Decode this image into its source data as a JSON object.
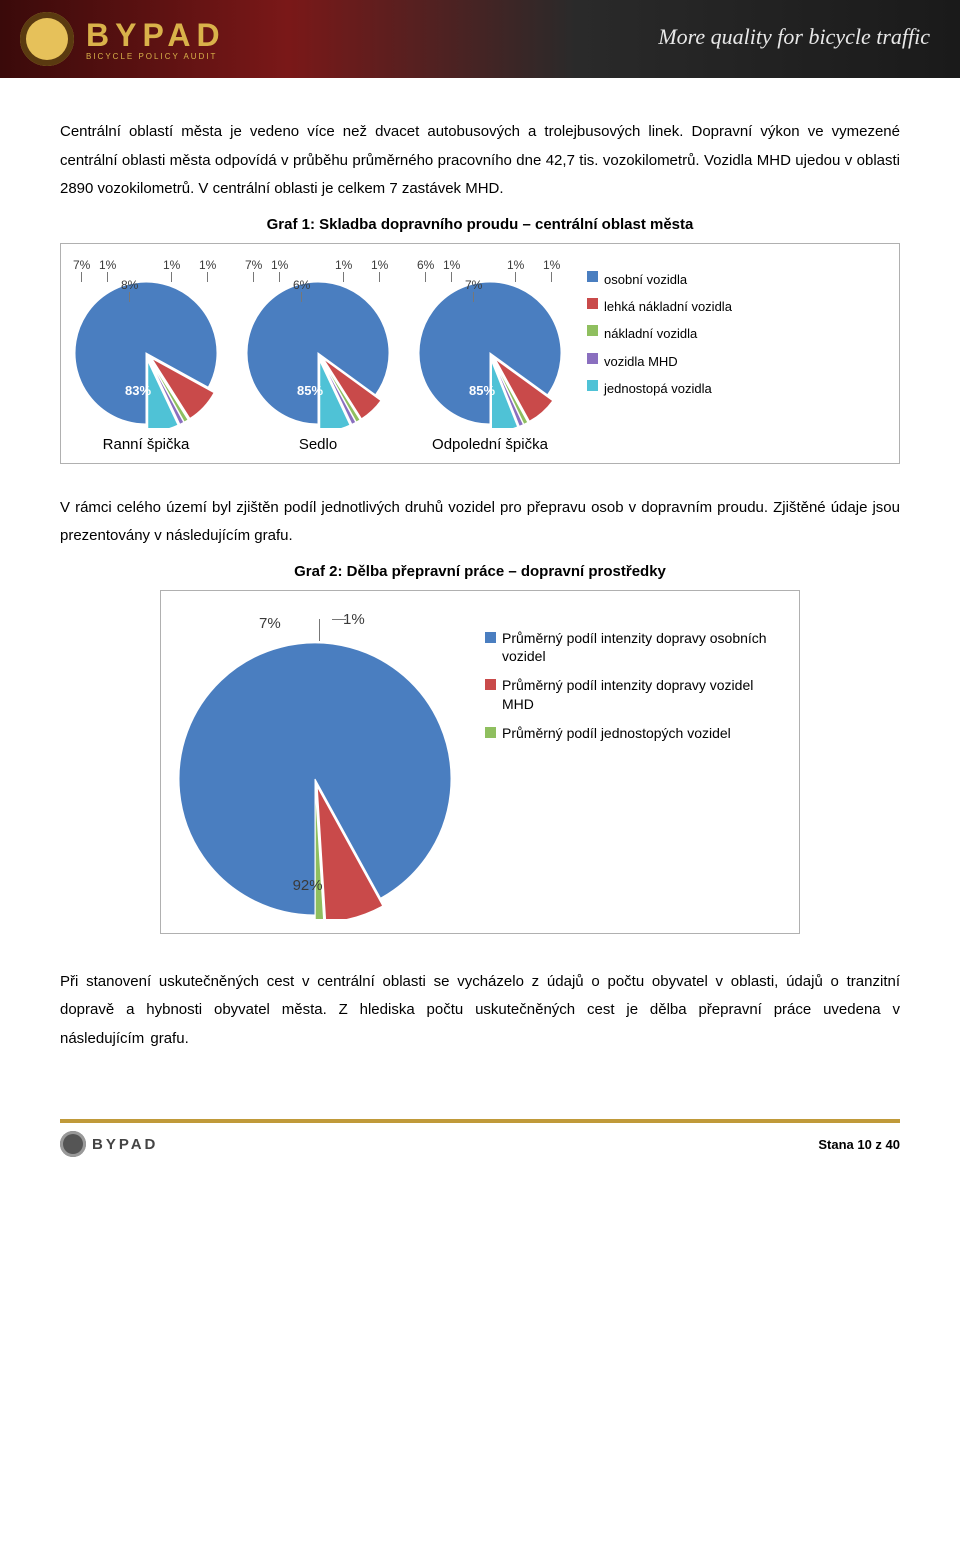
{
  "header": {
    "brand": "BYPAD",
    "brand_sub": "BICYCLE POLICY AUDIT",
    "tagline": "More quality for bicycle traffic"
  },
  "paragraphs": {
    "p1": "Centrální oblastí města je vedeno více než dvacet autobusových a trolejbusových linek. Dopravní výkon ve vymezené centrální oblasti města odpovídá v průběhu průměrného pracovního dne 42,7 tis. vozokilometrů. Vozidla MHD ujedou v oblasti 2890 vozokilometrů. V centrální oblasti je celkem 7 zastávek MHD.",
    "p2": "V rámci celého území byl zjištěn podíl jednotlivých druhů vozidel pro přepravu osob v dopravním proudu. Zjištěné údaje jsou prezentovány v následujícím grafu.",
    "p3a": "Při stanovení uskutečněných cest v centrální oblasti se vycházelo z údajů o počtu obyvatel v oblasti, údajů o tranzitní dopravě a hybnosti obyvatel města. Z hlediska počtu uskutečněných cest je dělba přepravní práce uvedena v následujícím grafu."
  },
  "chart1": {
    "title": "Graf 1: Skladba dopravního proudu – centrální oblast města",
    "legend": [
      {
        "label": "osobní vozidla",
        "color": "#4a7ec0"
      },
      {
        "label": "lehká nákladní vozidla",
        "color": "#c94a4a"
      },
      {
        "label": "nákladní vozidla",
        "color": "#8fbf5f"
      },
      {
        "label": "vozidla MHD",
        "color": "#8a6fbf"
      },
      {
        "label": "jednostopá vozidla",
        "color": "#4fc2d6"
      }
    ],
    "pies": [
      {
        "caption": "Ranní špička",
        "slices": [
          {
            "pct": 83,
            "color": "#4a7ec0"
          },
          {
            "pct": 8,
            "color": "#c94a4a"
          },
          {
            "pct": 1,
            "color": "#8fbf5f"
          },
          {
            "pct": 1,
            "color": "#8a6fbf"
          },
          {
            "pct": 7,
            "color": "#4fc2d6"
          }
        ],
        "main_label": "83%",
        "outer_labels": [
          "7%",
          "1%",
          "8%",
          "1%",
          "1%"
        ]
      },
      {
        "caption": "Sedlo",
        "slices": [
          {
            "pct": 85,
            "color": "#4a7ec0"
          },
          {
            "pct": 6,
            "color": "#c94a4a"
          },
          {
            "pct": 1,
            "color": "#8fbf5f"
          },
          {
            "pct": 1,
            "color": "#8a6fbf"
          },
          {
            "pct": 7,
            "color": "#4fc2d6"
          }
        ],
        "main_label": "85%",
        "outer_labels": [
          "7%",
          "1%",
          "6%",
          "1%",
          "1%"
        ]
      },
      {
        "caption": "Odpolední špička",
        "slices": [
          {
            "pct": 85,
            "color": "#4a7ec0"
          },
          {
            "pct": 7,
            "color": "#c94a4a"
          },
          {
            "pct": 1,
            "color": "#8fbf5f"
          },
          {
            "pct": 1,
            "color": "#8a6fbf"
          },
          {
            "pct": 6,
            "color": "#4fc2d6"
          }
        ],
        "main_label": "85%",
        "outer_labels": [
          "6%",
          "1%",
          "7%",
          "1%",
          "1%"
        ]
      }
    ]
  },
  "chart2": {
    "title": "Graf 2: Dělba přepravní práce – dopravní prostředky",
    "legend": [
      {
        "label": "Průměrný podíl intenzity dopravy osobních vozidel",
        "color": "#4a7ec0"
      },
      {
        "label": "Průměrný podíl intenzity dopravy vozidel MHD",
        "color": "#c94a4a"
      },
      {
        "label": "Průměrný podíl jednostopých vozidel",
        "color": "#8fbf5f"
      }
    ],
    "slices": [
      {
        "pct": 92,
        "color": "#4a7ec0",
        "label": "92%"
      },
      {
        "pct": 7,
        "color": "#c94a4a",
        "label": "7%"
      },
      {
        "pct": 1,
        "color": "#8fbf5f",
        "label": "1%"
      }
    ]
  },
  "footer": {
    "brand": "BYPAD",
    "page": "Stana 10 z 40"
  }
}
